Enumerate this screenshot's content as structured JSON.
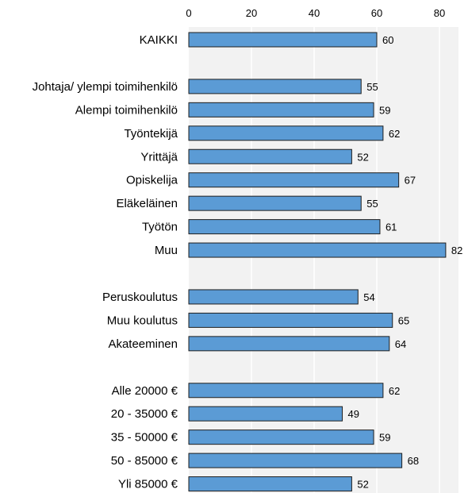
{
  "chart_data": {
    "type": "bar",
    "orientation": "horizontal",
    "title": "",
    "xlabel": "",
    "ylabel": "",
    "xlim": [
      0,
      85
    ],
    "x_ticks": [
      0,
      20,
      40,
      60,
      80
    ],
    "x_axis_position": "top",
    "grid": true,
    "legend": "none",
    "colors": {
      "bar": "#5b9bd5",
      "bar_border": "#1f1f1f",
      "plot_background": "#f2f2f2",
      "gridline": "#ffffff"
    },
    "groups": [
      {
        "items": [
          {
            "label": "KAIKKI",
            "value": 60
          }
        ]
      },
      {
        "items": [
          {
            "label": "Johtaja/ ylempi toimihenkilö",
            "value": 55
          },
          {
            "label": "Alempi toimihenkilö",
            "value": 59
          },
          {
            "label": "Työntekijä",
            "value": 62
          },
          {
            "label": "Yrittäjä",
            "value": 52
          },
          {
            "label": "Opiskelija",
            "value": 67
          },
          {
            "label": "Eläkeläinen",
            "value": 55
          },
          {
            "label": "Työtön",
            "value": 61
          },
          {
            "label": "Muu",
            "value": 82
          }
        ]
      },
      {
        "items": [
          {
            "label": "Peruskoulutus",
            "value": 54
          },
          {
            "label": "Muu koulutus",
            "value": 65
          },
          {
            "label": "Akateeminen",
            "value": 64
          }
        ]
      },
      {
        "items": [
          {
            "label": "Alle 20000 €",
            "value": 62
          },
          {
            "label": "20 - 35000 €",
            "value": 49
          },
          {
            "label": "35 - 50000 €",
            "value": 59
          },
          {
            "label": "50 - 85000 €",
            "value": 68
          },
          {
            "label": "Yli 85000 €",
            "value": 52
          }
        ]
      }
    ]
  }
}
